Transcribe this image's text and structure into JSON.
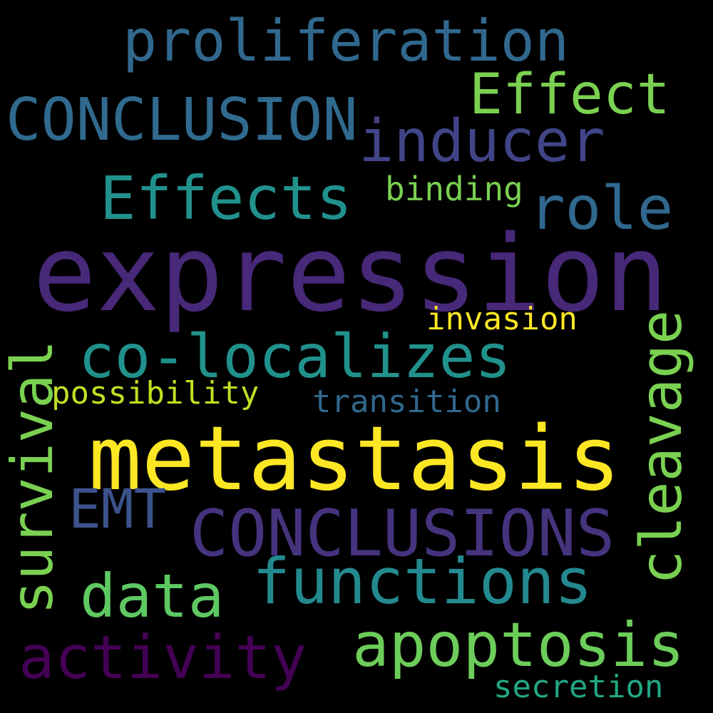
{
  "words": {
    "expression": {
      "text": "expression",
      "color": "#482878"
    },
    "metastasis": {
      "text": "metastasis",
      "color": "#fde725"
    },
    "proliferation": {
      "text": "proliferation",
      "color": "#31688e"
    },
    "conclusion": {
      "text": "CONCLUSION",
      "color": "#306a8e"
    },
    "effect": {
      "text": "Effect",
      "color": "#7ad151"
    },
    "inducer": {
      "text": "inducer",
      "color": "#414487"
    },
    "effects": {
      "text": "Effects",
      "color": "#21918c"
    },
    "binding": {
      "text": "binding",
      "color": "#7ad151"
    },
    "role": {
      "text": "role",
      "color": "#31688e"
    },
    "invasion": {
      "text": "invasion",
      "color": "#fde725"
    },
    "co_localizes": {
      "text": "co-localizes",
      "color": "#21918c"
    },
    "possibility": {
      "text": "possibility",
      "color": "#c2df23"
    },
    "transition": {
      "text": "transition",
      "color": "#31688e"
    },
    "cleavage": {
      "text": "cleavage",
      "color": "#7ad151"
    },
    "survival": {
      "text": "survival",
      "color": "#7ad151"
    },
    "emt": {
      "text": "EMT",
      "color": "#3b528b"
    },
    "conclusions": {
      "text": "CONCLUSIONS",
      "color": "#46337e"
    },
    "data": {
      "text": "data",
      "color": "#5ec962"
    },
    "functions": {
      "text": "functions",
      "color": "#23898e"
    },
    "activity": {
      "text": "activity",
      "color": "#440154"
    },
    "apoptosis": {
      "text": "apoptosis",
      "color": "#6ccd5a"
    },
    "secretion": {
      "text": "secretion",
      "color": "#22a884"
    }
  }
}
